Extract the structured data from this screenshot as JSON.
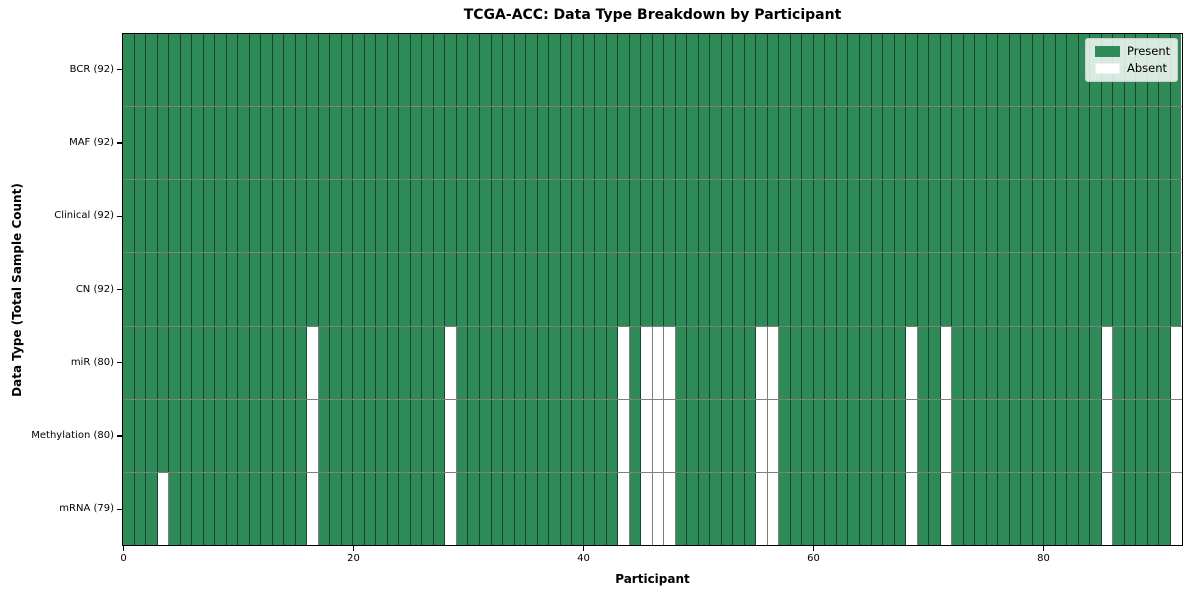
{
  "chart_data": {
    "type": "heatmap",
    "title": "TCGA-ACC: Data Type Breakdown by Participant",
    "xlabel": "Participant",
    "ylabel": "Data Type (Total Sample Count)",
    "n_participants": 92,
    "x_range": [
      0,
      92
    ],
    "x_ticks": [
      0,
      20,
      40,
      60,
      80
    ],
    "grid": true,
    "legend_position": "upper right",
    "legend": [
      {
        "label": "Present",
        "color": "#2E8B57"
      },
      {
        "label": "Absent",
        "color": "#FFFFFF"
      }
    ],
    "colors": {
      "present": "#2E8B57",
      "absent": "#FFFFFF",
      "cell_edge": "rgba(0,0,0,0.5)",
      "axis_frame": "#000000",
      "legend_bg": "rgba(255,255,255,0.82)",
      "legend_border": "#cccccc",
      "text": "#000000"
    },
    "rows": [
      {
        "label": "BCR (92)",
        "data_type": "BCR",
        "present_count": 92,
        "absent_participants": []
      },
      {
        "label": "MAF (92)",
        "data_type": "MAF",
        "present_count": 92,
        "absent_participants": []
      },
      {
        "label": "Clinical (92)",
        "data_type": "Clinical",
        "present_count": 92,
        "absent_participants": []
      },
      {
        "label": "CN (92)",
        "data_type": "CN",
        "present_count": 92,
        "absent_participants": []
      },
      {
        "label": "miR (80)",
        "data_type": "miR",
        "present_count": 80,
        "absent_participants": [
          16,
          28,
          43,
          45,
          46,
          47,
          55,
          56,
          68,
          71,
          85,
          91
        ]
      },
      {
        "label": "Methylation (80)",
        "data_type": "Methylation",
        "present_count": 80,
        "absent_participants": [
          16,
          28,
          43,
          45,
          46,
          47,
          55,
          56,
          68,
          71,
          85,
          91
        ]
      },
      {
        "label": "mRNA (79)",
        "data_type": "mRNA",
        "present_count": 79,
        "absent_participants": [
          3,
          16,
          28,
          43,
          45,
          46,
          47,
          55,
          56,
          68,
          71,
          85,
          91
        ]
      }
    ]
  }
}
